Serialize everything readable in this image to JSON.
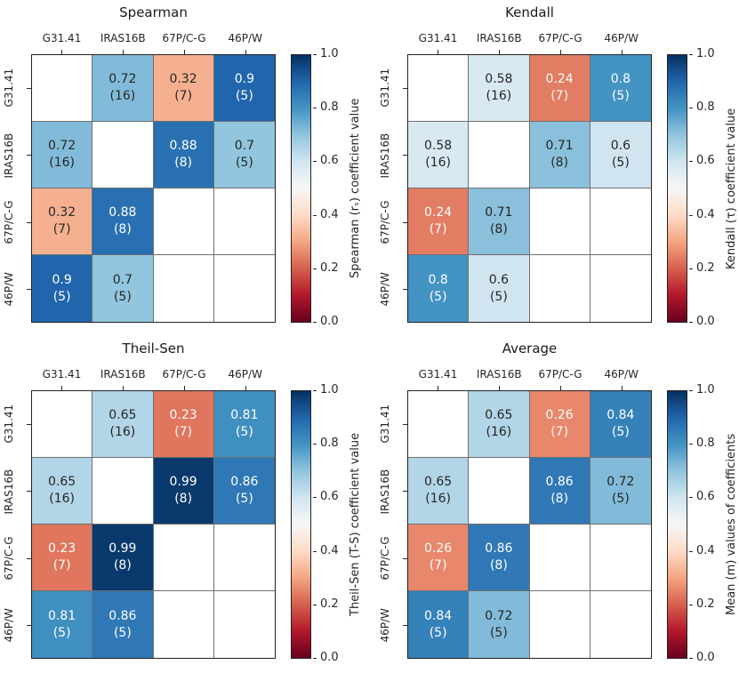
{
  "figure": {
    "colormap": "RdBu",
    "value_range": [
      0.0,
      1.0
    ],
    "categories": [
      "G31.41",
      "IRAS16B",
      "67P/C-G",
      "46P/W"
    ],
    "text_color": "#262626",
    "spine_color": "#222222",
    "gridline_color": "#6f6f6f",
    "colorbar": {
      "ticks": [
        "1.0",
        "0.8",
        "0.6",
        "0.4",
        "0.2",
        "0.0"
      ],
      "gradient_stops": [
        "#053061",
        "#2166ac",
        "#4393c3",
        "#92c5de",
        "#d1e5f0",
        "#f7f7f7",
        "#fddbc7",
        "#f4a582",
        "#d6604d",
        "#b2182b",
        "#67001f"
      ]
    }
  },
  "panels": [
    {
      "id": "spearman",
      "title": "Spearman",
      "colorbar_label": "Spearman (rₛ) coefficient value",
      "cells": [
        [
          null,
          {
            "value": "0.72",
            "count": "(16)",
            "bg": "#82bbd9",
            "fg": "#262626"
          },
          {
            "value": "0.32",
            "count": "(7)",
            "bg": "#f5b090",
            "fg": "#262626"
          },
          {
            "value": "0.9",
            "count": "(5)",
            "bg": "#2166ac",
            "fg": "#ffffff"
          }
        ],
        [
          {
            "value": "0.72",
            "count": "(16)",
            "bg": "#82bbd9",
            "fg": "#262626"
          },
          null,
          {
            "value": "0.88",
            "count": "(8)",
            "bg": "#2870b1",
            "fg": "#ffffff"
          },
          {
            "value": "0.7",
            "count": "(5)",
            "bg": "#92c5de",
            "fg": "#262626"
          }
        ],
        [
          {
            "value": "0.32",
            "count": "(7)",
            "bg": "#f5b090",
            "fg": "#262626"
          },
          {
            "value": "0.88",
            "count": "(8)",
            "bg": "#2870b1",
            "fg": "#ffffff"
          },
          null,
          null
        ],
        [
          {
            "value": "0.9",
            "count": "(5)",
            "bg": "#2166ac",
            "fg": "#ffffff"
          },
          {
            "value": "0.7",
            "count": "(5)",
            "bg": "#92c5de",
            "fg": "#262626"
          },
          null,
          null
        ]
      ]
    },
    {
      "id": "kendall",
      "title": "Kendall",
      "colorbar_label": "Kendall (τ) coefficient value",
      "cells": [
        [
          null,
          {
            "value": "0.58",
            "count": "(16)",
            "bg": "#d9e9f1",
            "fg": "#262626"
          },
          {
            "value": "0.24",
            "count": "(7)",
            "bg": "#e27c62",
            "fg": "#ffffff"
          },
          {
            "value": "0.8",
            "count": "(5)",
            "bg": "#4393c3",
            "fg": "#ffffff"
          }
        ],
        [
          {
            "value": "0.58",
            "count": "(16)",
            "bg": "#d9e9f1",
            "fg": "#262626"
          },
          null,
          {
            "value": "0.71",
            "count": "(8)",
            "bg": "#8ac0db",
            "fg": "#262626"
          },
          {
            "value": "0.6",
            "count": "(5)",
            "bg": "#d1e5f0",
            "fg": "#262626"
          }
        ],
        [
          {
            "value": "0.24",
            "count": "(7)",
            "bg": "#e27c62",
            "fg": "#ffffff"
          },
          {
            "value": "0.71",
            "count": "(8)",
            "bg": "#8ac0db",
            "fg": "#262626"
          },
          null,
          null
        ],
        [
          {
            "value": "0.8",
            "count": "(5)",
            "bg": "#4393c3",
            "fg": "#ffffff"
          },
          {
            "value": "0.6",
            "count": "(5)",
            "bg": "#d1e5f0",
            "fg": "#262626"
          },
          null,
          null
        ]
      ]
    },
    {
      "id": "theilsen",
      "title": "Theil-Sen",
      "colorbar_label": "Theil-Sen (T-S) coefficient value",
      "cells": [
        [
          null,
          {
            "value": "0.65",
            "count": "(16)",
            "bg": "#b2d5e7",
            "fg": "#262626"
          },
          {
            "value": "0.23",
            "count": "(7)",
            "bg": "#df765d",
            "fg": "#ffffff"
          },
          {
            "value": "0.81",
            "count": "(5)",
            "bg": "#408fc1",
            "fg": "#ffffff"
          }
        ],
        [
          {
            "value": "0.65",
            "count": "(16)",
            "bg": "#b2d5e7",
            "fg": "#262626"
          },
          null,
          {
            "value": "0.99",
            "count": "(8)",
            "bg": "#0a3a6d",
            "fg": "#ffffff"
          },
          {
            "value": "0.86",
            "count": "(5)",
            "bg": "#2f78b5",
            "fg": "#ffffff"
          }
        ],
        [
          {
            "value": "0.23",
            "count": "(7)",
            "bg": "#df765d",
            "fg": "#ffffff"
          },
          {
            "value": "0.99",
            "count": "(8)",
            "bg": "#0a3a6d",
            "fg": "#ffffff"
          },
          null,
          null
        ],
        [
          {
            "value": "0.81",
            "count": "(5)",
            "bg": "#408fc1",
            "fg": "#ffffff"
          },
          {
            "value": "0.86",
            "count": "(5)",
            "bg": "#2f78b5",
            "fg": "#ffffff"
          },
          null,
          null
        ]
      ]
    },
    {
      "id": "average",
      "title": "Average",
      "colorbar_label": "Mean (m) values of coefficients",
      "cells": [
        [
          null,
          {
            "value": "0.65",
            "count": "(16)",
            "bg": "#b2d5e7",
            "fg": "#262626"
          },
          {
            "value": "0.26",
            "count": "(7)",
            "bg": "#e8876b",
            "fg": "#ffffff"
          },
          {
            "value": "0.84",
            "count": "(5)",
            "bg": "#3581ba",
            "fg": "#ffffff"
          }
        ],
        [
          {
            "value": "0.65",
            "count": "(16)",
            "bg": "#b2d5e7",
            "fg": "#262626"
          },
          null,
          {
            "value": "0.86",
            "count": "(8)",
            "bg": "#2f78b5",
            "fg": "#ffffff"
          },
          {
            "value": "0.72",
            "count": "(5)",
            "bg": "#82bbd9",
            "fg": "#262626"
          }
        ],
        [
          {
            "value": "0.26",
            "count": "(7)",
            "bg": "#e8876b",
            "fg": "#ffffff"
          },
          {
            "value": "0.86",
            "count": "(8)",
            "bg": "#2f78b5",
            "fg": "#ffffff"
          },
          null,
          null
        ],
        [
          {
            "value": "0.84",
            "count": "(5)",
            "bg": "#3581ba",
            "fg": "#ffffff"
          },
          {
            "value": "0.72",
            "count": "(5)",
            "bg": "#82bbd9",
            "fg": "#262626"
          },
          null,
          null
        ]
      ]
    }
  ],
  "chart_data": [
    {
      "type": "heatmap",
      "title": "Spearman",
      "x_categories": [
        "G31.41",
        "IRAS16B",
        "67P/C-G",
        "46P/W"
      ],
      "y_categories": [
        "G31.41",
        "IRAS16B",
        "67P/C-G",
        "46P/W"
      ],
      "values": [
        [
          null,
          0.72,
          0.32,
          0.9
        ],
        [
          0.72,
          null,
          0.88,
          0.7
        ],
        [
          0.32,
          0.88,
          null,
          null
        ],
        [
          0.9,
          0.7,
          null,
          null
        ]
      ],
      "counts": [
        [
          null,
          16,
          7,
          5
        ],
        [
          16,
          null,
          8,
          5
        ],
        [
          7,
          8,
          null,
          null
        ],
        [
          5,
          5,
          null,
          null
        ]
      ],
      "colorbar_label": "Spearman (rₛ) coefficient value",
      "colormap": "RdBu",
      "vmin": 0.0,
      "vmax": 1.0,
      "colorbar_ticks": [
        1.0,
        0.8,
        0.6,
        0.4,
        0.2,
        0.0
      ],
      "legend_position": "right-colorbar",
      "grid": true
    },
    {
      "type": "heatmap",
      "title": "Kendall",
      "x_categories": [
        "G31.41",
        "IRAS16B",
        "67P/C-G",
        "46P/W"
      ],
      "y_categories": [
        "G31.41",
        "IRAS16B",
        "67P/C-G",
        "46P/W"
      ],
      "values": [
        [
          null,
          0.58,
          0.24,
          0.8
        ],
        [
          0.58,
          null,
          0.71,
          0.6
        ],
        [
          0.24,
          0.71,
          null,
          null
        ],
        [
          0.8,
          0.6,
          null,
          null
        ]
      ],
      "counts": [
        [
          null,
          16,
          7,
          5
        ],
        [
          16,
          null,
          8,
          5
        ],
        [
          7,
          8,
          null,
          null
        ],
        [
          5,
          5,
          null,
          null
        ]
      ],
      "colorbar_label": "Kendall (τ) coefficient value",
      "colormap": "RdBu",
      "vmin": 0.0,
      "vmax": 1.0,
      "colorbar_ticks": [
        1.0,
        0.8,
        0.6,
        0.4,
        0.2,
        0.0
      ],
      "legend_position": "right-colorbar",
      "grid": true
    },
    {
      "type": "heatmap",
      "title": "Theil-Sen",
      "x_categories": [
        "G31.41",
        "IRAS16B",
        "67P/C-G",
        "46P/W"
      ],
      "y_categories": [
        "G31.41",
        "IRAS16B",
        "67P/C-G",
        "46P/W"
      ],
      "values": [
        [
          null,
          0.65,
          0.23,
          0.81
        ],
        [
          0.65,
          null,
          0.99,
          0.86
        ],
        [
          0.23,
          0.99,
          null,
          null
        ],
        [
          0.81,
          0.86,
          null,
          null
        ]
      ],
      "counts": [
        [
          null,
          16,
          7,
          5
        ],
        [
          16,
          null,
          8,
          5
        ],
        [
          7,
          8,
          null,
          null
        ],
        [
          5,
          5,
          null,
          null
        ]
      ],
      "colorbar_label": "Theil-Sen (T-S) coefficient value",
      "colormap": "RdBu",
      "vmin": 0.0,
      "vmax": 1.0,
      "colorbar_ticks": [
        1.0,
        0.8,
        0.6,
        0.4,
        0.2,
        0.0
      ],
      "legend_position": "right-colorbar",
      "grid": true
    },
    {
      "type": "heatmap",
      "title": "Average",
      "x_categories": [
        "G31.41",
        "IRAS16B",
        "67P/C-G",
        "46P/W"
      ],
      "y_categories": [
        "G31.41",
        "IRAS16B",
        "67P/C-G",
        "46P/W"
      ],
      "values": [
        [
          null,
          0.65,
          0.26,
          0.84
        ],
        [
          0.65,
          null,
          0.86,
          0.72
        ],
        [
          0.26,
          0.86,
          null,
          null
        ],
        [
          0.84,
          0.72,
          null,
          null
        ]
      ],
      "counts": [
        [
          null,
          16,
          7,
          5
        ],
        [
          16,
          null,
          8,
          5
        ],
        [
          7,
          8,
          null,
          null
        ],
        [
          5,
          5,
          null,
          null
        ]
      ],
      "colorbar_label": "Mean (m) values of coefficients",
      "colormap": "RdBu",
      "vmin": 0.0,
      "vmax": 1.0,
      "colorbar_ticks": [
        1.0,
        0.8,
        0.6,
        0.4,
        0.2,
        0.0
      ],
      "legend_position": "right-colorbar",
      "grid": true
    }
  ]
}
